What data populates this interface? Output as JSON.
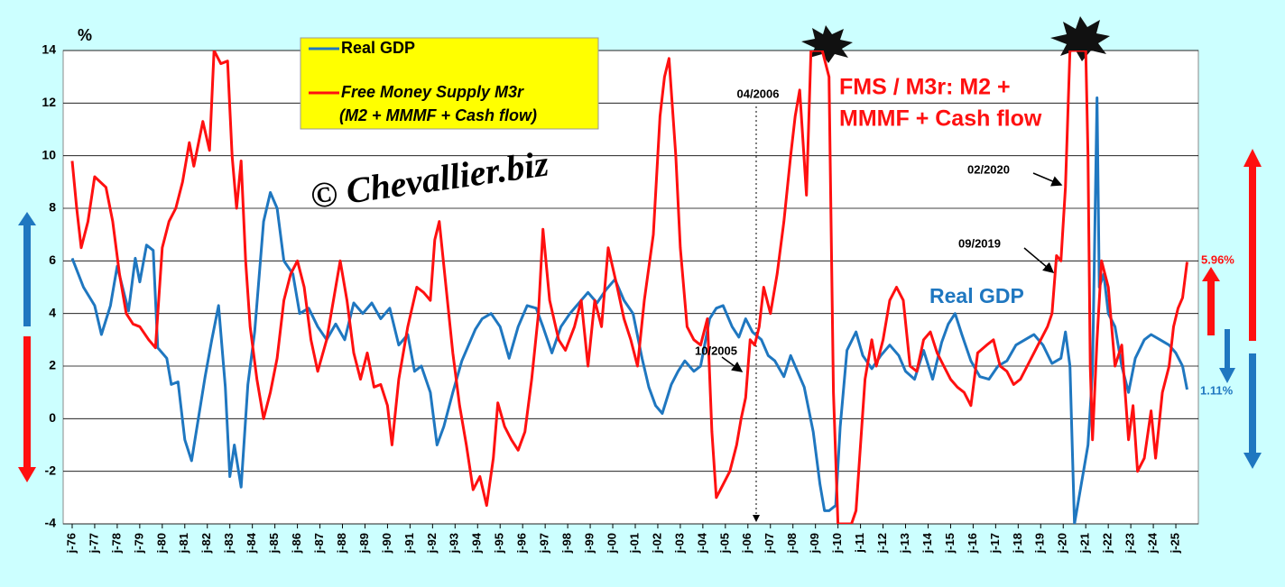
{
  "chart_data": {
    "type": "line",
    "y_unit": "%",
    "watermark": "© Chevallier.biz",
    "annotations": [
      "FMS / M3r: M2 +",
      "MMMF + Cash flow",
      "Real GDP",
      "04/2006",
      "02/2020",
      "09/2019",
      "10/2005"
    ],
    "xlim": [
      1975.6,
      2026.0
    ],
    "xticks": [
      {
        "value": 1976,
        "label": "j-76"
      },
      {
        "value": 1977,
        "label": "j-77"
      },
      {
        "value": 1978,
        "label": "j-78"
      },
      {
        "value": 1979,
        "label": "j-79"
      },
      {
        "value": 1980,
        "label": "j-80"
      },
      {
        "value": 1981,
        "label": "j-81"
      },
      {
        "value": 1982,
        "label": "j-82"
      },
      {
        "value": 1983,
        "label": "j-83"
      },
      {
        "value": 1984,
        "label": "j-84"
      },
      {
        "value": 1985,
        "label": "j-85"
      },
      {
        "value": 1986,
        "label": "j-86"
      },
      {
        "value": 1987,
        "label": "j-87"
      },
      {
        "value": 1988,
        "label": "j-88"
      },
      {
        "value": 1989,
        "label": "j-89"
      },
      {
        "value": 1990,
        "label": "j-90"
      },
      {
        "value": 1991,
        "label": "j-91"
      },
      {
        "value": 1992,
        "label": "j-92"
      },
      {
        "value": 1993,
        "label": "j-93"
      },
      {
        "value": 1994,
        "label": "j-94"
      },
      {
        "value": 1995,
        "label": "j-95"
      },
      {
        "value": 1996,
        "label": "j-96"
      },
      {
        "value": 1997,
        "label": "j-97"
      },
      {
        "value": 1998,
        "label": "j-98"
      },
      {
        "value": 1999,
        "label": "j-99"
      },
      {
        "value": 2000,
        "label": "j-00"
      },
      {
        "value": 2001,
        "label": "j-01"
      },
      {
        "value": 2002,
        "label": "j-02"
      },
      {
        "value": 2003,
        "label": "j-03"
      },
      {
        "value": 2004,
        "label": "j-04"
      },
      {
        "value": 2005,
        "label": "j-05"
      },
      {
        "value": 2006,
        "label": "j-06"
      },
      {
        "value": 2007,
        "label": "j-07"
      },
      {
        "value": 2008,
        "label": "j-08"
      },
      {
        "value": 2009,
        "label": "j-09"
      },
      {
        "value": 2010,
        "label": "j-10"
      },
      {
        "value": 2011,
        "label": "j-11"
      },
      {
        "value": 2012,
        "label": "j-12"
      },
      {
        "value": 2013,
        "label": "j-13"
      },
      {
        "value": 2014,
        "label": "j-14"
      },
      {
        "value": 2015,
        "label": "j-15"
      },
      {
        "value": 2016,
        "label": "j-16"
      },
      {
        "value": 2017,
        "label": "j-17"
      },
      {
        "value": 2018,
        "label": "j-18"
      },
      {
        "value": 2019,
        "label": "j-19"
      },
      {
        "value": 2020,
        "label": "j-20"
      },
      {
        "value": 2021,
        "label": "j-21"
      },
      {
        "value": 2022,
        "label": "j-22"
      },
      {
        "value": 2023,
        "label": "j-23"
      },
      {
        "value": 2024,
        "label": "j-24"
      },
      {
        "value": 2025,
        "label": "j-25"
      }
    ],
    "ylim": [
      -4,
      14
    ],
    "yticks": [
      -4,
      -2,
      0,
      2,
      4,
      6,
      8,
      10,
      12,
      14
    ],
    "grid": true,
    "series": [
      {
        "name": "Real GDP",
        "color": "#1f77c0",
        "last_value_label": "1.11%",
        "x": [
          1976.0,
          1976.5,
          1977.0,
          1977.3,
          1977.7,
          1978.0,
          1978.5,
          1978.8,
          1979.0,
          1979.3,
          1979.6,
          1979.8,
          1980.2,
          1980.4,
          1980.7,
          1981.0,
          1981.3,
          1981.6,
          1981.9,
          1982.2,
          1982.5,
          1982.8,
          1983.0,
          1983.2,
          1983.5,
          1983.8,
          1984.1,
          1984.5,
          1984.8,
          1985.1,
          1985.4,
          1985.8,
          1986.1,
          1986.5,
          1986.9,
          1987.3,
          1987.7,
          1988.1,
          1988.5,
          1988.9,
          1989.3,
          1989.7,
          1990.1,
          1990.5,
          1990.9,
          1991.2,
          1991.5,
          1991.9,
          1992.2,
          1992.5,
          1992.9,
          1993.3,
          1993.6,
          1993.9,
          1994.2,
          1994.6,
          1995.0,
          1995.4,
          1995.8,
          1996.2,
          1996.6,
          1996.9,
          1997.3,
          1997.7,
          1998.1,
          1998.5,
          1998.9,
          1999.3,
          1999.7,
          2000.1,
          2000.5,
          2000.9,
          2001.3,
          2001.6,
          2001.9,
          2002.2,
          2002.6,
          2002.9,
          2003.2,
          2003.6,
          2003.9,
          2004.3,
          2004.6,
          2004.9,
          2005.3,
          2005.6,
          2005.9,
          2006.2,
          2006.6,
          2006.9,
          2007.2,
          2007.6,
          2007.9,
          2008.2,
          2008.5,
          2008.9,
          2009.2,
          2009.4,
          2009.6,
          2009.9,
          2010.1,
          2010.4,
          2010.8,
          2011.1,
          2011.5,
          2011.9,
          2012.3,
          2012.7,
          2013.0,
          2013.4,
          2013.8,
          2014.2,
          2014.6,
          2014.9,
          2015.2,
          2015.5,
          2015.9,
          2016.3,
          2016.7,
          2017.1,
          2017.5,
          2017.9,
          2018.3,
          2018.7,
          2019.1,
          2019.5,
          2019.9,
          2020.1,
          2020.3,
          2020.5,
          2020.8,
          2021.1,
          2021.3,
          2021.5,
          2021.6,
          2021.8,
          2022.0,
          2022.3,
          2022.6,
          2022.9,
          2023.2,
          2023.6,
          2023.9,
          2024.3,
          2024.7,
          2025.0,
          2025.3,
          2025.5
        ],
        "values": [
          6.1,
          5.0,
          4.3,
          3.2,
          4.3,
          5.8,
          4.1,
          6.1,
          5.2,
          6.6,
          6.4,
          2.7,
          2.3,
          1.3,
          1.4,
          -0.8,
          -1.6,
          0,
          1.6,
          3.0,
          4.3,
          1.2,
          -2.2,
          -1.0,
          -2.6,
          1.3,
          3.3,
          7.5,
          8.6,
          8.0,
          6.0,
          5.5,
          4.0,
          4.2,
          3.5,
          3.0,
          3.6,
          3.0,
          4.4,
          4.0,
          4.4,
          3.8,
          4.2,
          2.8,
          3.2,
          1.8,
          2.0,
          1.0,
          -1.0,
          -0.3,
          1.0,
          2.2,
          2.8,
          3.4,
          3.8,
          4.0,
          3.5,
          2.3,
          3.5,
          4.3,
          4.2,
          3.5,
          2.5,
          3.5,
          4.0,
          4.4,
          4.8,
          4.4,
          4.9,
          5.3,
          4.5,
          4.0,
          2.3,
          1.2,
          0.5,
          0.2,
          1.3,
          1.8,
          2.2,
          1.8,
          2.0,
          3.8,
          4.2,
          4.3,
          3.5,
          3.1,
          3.8,
          3.3,
          3.0,
          2.4,
          2.2,
          1.6,
          2.4,
          1.8,
          1.2,
          -0.5,
          -2.5,
          -3.5,
          -3.5,
          -3.3,
          -0.3,
          2.6,
          3.3,
          2.4,
          1.9,
          2.4,
          2.8,
          2.4,
          1.8,
          1.5,
          2.6,
          1.5,
          2.9,
          3.6,
          4.0,
          3.2,
          2.2,
          1.6,
          1.5,
          2.0,
          2.2,
          2.8,
          3.0,
          3.2,
          2.8,
          2.1,
          2.3,
          3.3,
          2.0,
          -4.0,
          -2.5,
          -1.0,
          1.8,
          12.2,
          5.0,
          5.5,
          4.0,
          3.5,
          2.0,
          1.0,
          2.3,
          3.0,
          3.2,
          3.0,
          2.8,
          2.5,
          2.0,
          1.11
        ]
      },
      {
        "name": "Free Money Supply M3r",
        "legend_note": "(M2 + MMMF + Cash flow)",
        "color": "#ff1010",
        "last_value_label": "5.96%",
        "x": [
          1976.0,
          1976.2,
          1976.4,
          1976.7,
          1977.0,
          1977.5,
          1977.8,
          1978.1,
          1978.4,
          1978.7,
          1979.0,
          1979.4,
          1979.7,
          1980.0,
          1980.3,
          1980.6,
          1980.9,
          1981.2,
          1981.4,
          1981.8,
          1982.1,
          1982.3,
          1982.6,
          1982.9,
          1983.1,
          1983.3,
          1983.5,
          1983.7,
          1983.9,
          1984.2,
          1984.5,
          1984.8,
          1985.1,
          1985.4,
          1985.7,
          1986.0,
          1986.3,
          1986.6,
          1986.9,
          1987.3,
          1987.6,
          1987.9,
          1988.2,
          1988.5,
          1988.8,
          1989.1,
          1989.4,
          1989.7,
          1990.0,
          1990.2,
          1990.5,
          1990.9,
          1991.3,
          1991.6,
          1991.9,
          1992.1,
          1992.3,
          1992.6,
          1992.9,
          1993.2,
          1993.5,
          1993.8,
          1994.1,
          1994.4,
          1994.7,
          1994.9,
          1995.2,
          1995.5,
          1995.8,
          1996.1,
          1996.4,
          1996.7,
          1996.9,
          1997.2,
          1997.6,
          1997.9,
          1998.3,
          1998.6,
          1998.9,
          1999.2,
          1999.5,
          1999.8,
          2000.2,
          2000.5,
          2000.8,
          2001.1,
          2001.4,
          2001.8,
          2002.1,
          2002.3,
          2002.5,
          2002.8,
          2003.0,
          2003.3,
          2003.6,
          2003.9,
          2004.2,
          2004.4,
          2004.6,
          2004.9,
          2005.2,
          2005.5,
          2005.7,
          2005.9,
          2006.1,
          2006.3,
          2006.5,
          2006.7,
          2007.0,
          2007.3,
          2007.6,
          2007.9,
          2008.1,
          2008.3,
          2008.6,
          2008.8,
          2009.0,
          2009.3,
          2009.6,
          2009.8,
          2010.0,
          2010.3,
          2010.6,
          2010.8,
          2011.0,
          2011.2,
          2011.5,
          2011.7,
          2012.0,
          2012.3,
          2012.6,
          2012.9,
          2013.2,
          2013.5,
          2013.8,
          2014.1,
          2014.4,
          2014.7,
          2015.0,
          2015.3,
          2015.6,
          2015.9,
          2016.2,
          2016.6,
          2016.9,
          2017.2,
          2017.5,
          2017.8,
          2018.1,
          2018.4,
          2018.7,
          2019.0,
          2019.3,
          2019.5,
          2019.7,
          2019.9,
          2020.1,
          2020.3,
          2020.5,
          2020.8,
          2021.0,
          2021.1,
          2021.2,
          2021.3,
          2021.5,
          2021.7,
          2022.0,
          2022.3,
          2022.6,
          2022.9,
          2023.1,
          2023.3,
          2023.6,
          2023.9,
          2024.1,
          2024.4,
          2024.7,
          2024.9,
          2025.1,
          2025.3,
          2025.5
        ],
        "values": [
          9.8,
          8.0,
          6.5,
          7.5,
          9.2,
          8.8,
          7.5,
          5.5,
          4.0,
          3.6,
          3.5,
          3.0,
          2.7,
          6.5,
          7.5,
          8.0,
          9.0,
          10.5,
          9.6,
          11.3,
          10.2,
          14.0,
          13.5,
          13.6,
          10.0,
          8.0,
          9.8,
          6.0,
          3.5,
          1.5,
          0.0,
          1.0,
          2.3,
          4.5,
          5.5,
          6.0,
          5.0,
          3.0,
          1.8,
          3.0,
          4.5,
          6.0,
          4.5,
          2.5,
          1.5,
          2.5,
          1.2,
          1.3,
          0.5,
          -1.0,
          1.5,
          3.5,
          5.0,
          4.8,
          4.5,
          6.8,
          7.5,
          5.0,
          2.5,
          0.5,
          -1.0,
          -2.7,
          -2.2,
          -3.3,
          -1.5,
          0.6,
          -0.3,
          -0.8,
          -1.2,
          -0.5,
          1.5,
          4.0,
          7.2,
          4.5,
          3.0,
          2.6,
          3.5,
          4.5,
          2.0,
          4.5,
          3.5,
          6.5,
          5.0,
          3.8,
          3.0,
          2.0,
          4.5,
          7.0,
          11.5,
          13.0,
          13.7,
          10.0,
          6.5,
          3.5,
          3.0,
          2.8,
          3.8,
          -0.5,
          -3.0,
          -2.5,
          -2.0,
          -1.0,
          0,
          0.8,
          3.0,
          2.8,
          3.5,
          5.0,
          4.0,
          5.5,
          7.5,
          10.0,
          11.5,
          12.5,
          8.5,
          14.0,
          14.0,
          14.0,
          13.0,
          1.0,
          -4.0,
          -4.0,
          -4.0,
          -3.5,
          -1.0,
          1.5,
          3.0,
          2.0,
          3.0,
          4.5,
          5.0,
          4.5,
          2.0,
          1.8,
          3.0,
          3.3,
          2.5,
          2.0,
          1.5,
          1.2,
          1.0,
          0.5,
          2.5,
          2.8,
          3.0,
          2.0,
          1.8,
          1.3,
          1.5,
          2.0,
          2.5,
          3.0,
          3.5,
          4.0,
          6.2,
          6.0,
          8.8,
          14.0,
          14.0,
          14.0,
          14.0,
          10.0,
          2.0,
          -0.8,
          3.0,
          6.0,
          5.0,
          2.0,
          2.8,
          -0.8,
          0.5,
          -2.0,
          -1.5,
          0.3,
          -1.5,
          1.0,
          2.0,
          3.5,
          4.2,
          4.6,
          5.96
        ]
      }
    ]
  }
}
